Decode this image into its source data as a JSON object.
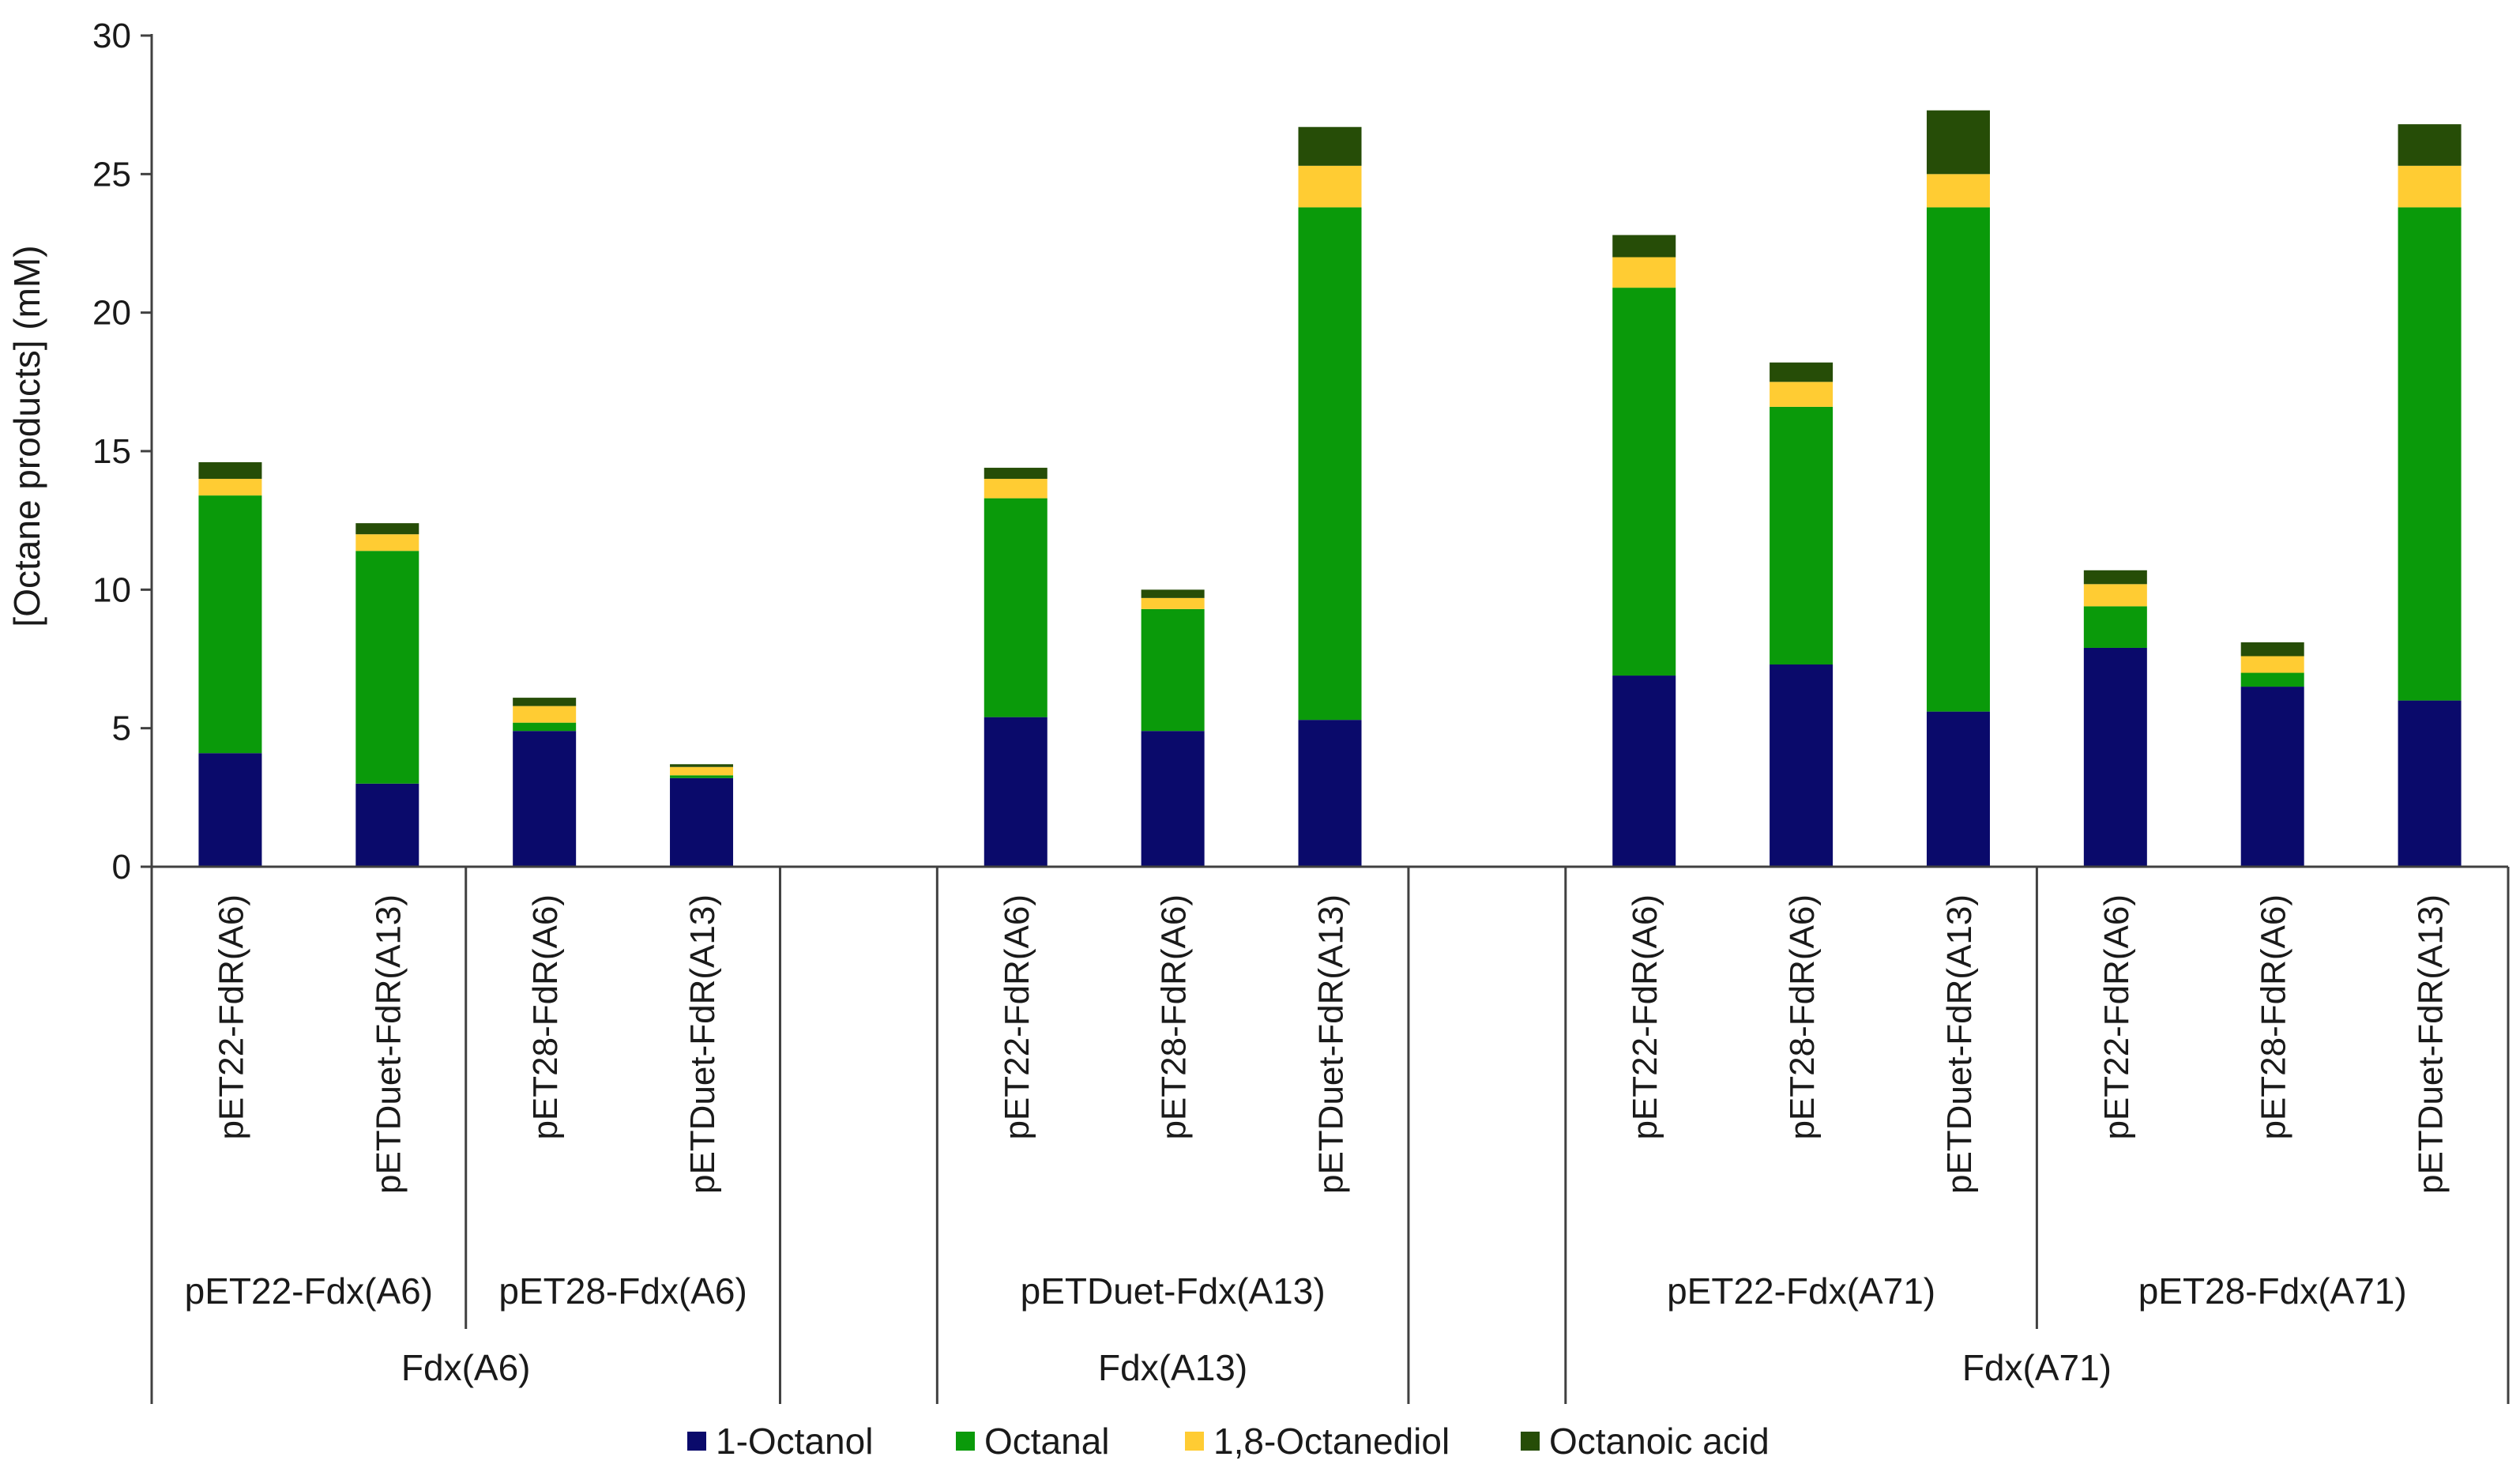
{
  "chart_data": {
    "type": "bar",
    "stacked": true,
    "ylabel": "[Octane products] (mM)",
    "ylim": [
      0,
      30
    ],
    "yticks": [
      0,
      5,
      10,
      15,
      20,
      25,
      30
    ],
    "grid": false,
    "legend_position": "bottom",
    "categories": [
      "pET22-FdR(A6)",
      "pETDuet-FdR(A13)",
      "pET28-FdR(A6)",
      "pETDuet-FdR(A13)",
      "",
      "pET22-FdR(A6)",
      "pET28-FdR(A6)",
      "pETDuet-FdR(A13)",
      "",
      "pET22-FdR(A6)",
      "pET28-FdR(A6)",
      "pETDuet-FdR(A13)",
      "pET22-FdR(A6)",
      "pET28-FdR(A6)",
      "pETDuet-FdR(A13)"
    ],
    "series": [
      {
        "name": "1-Octanol",
        "color": "#0a0a6b",
        "values": [
          4.1,
          3.0,
          4.9,
          3.2,
          null,
          5.4,
          4.9,
          5.3,
          null,
          6.9,
          7.3,
          5.6,
          7.9,
          6.5,
          6.0
        ]
      },
      {
        "name": "Octanal",
        "color": "#0a9a0a",
        "values": [
          9.3,
          8.4,
          0.3,
          0.1,
          null,
          7.9,
          4.4,
          18.5,
          null,
          14.0,
          9.3,
          18.2,
          1.5,
          0.5,
          17.8
        ]
      },
      {
        "name": "1,8-Octanediol",
        "color": "#ffcc33",
        "values": [
          0.6,
          0.6,
          0.6,
          0.3,
          null,
          0.7,
          0.4,
          1.5,
          null,
          1.1,
          0.9,
          1.2,
          0.8,
          0.6,
          1.5
        ]
      },
      {
        "name": "Octanoic acid",
        "color": "#264d07",
        "values": [
          0.6,
          0.4,
          0.3,
          0.1,
          null,
          0.4,
          0.3,
          1.4,
          null,
          0.8,
          0.7,
          2.3,
          0.5,
          0.5,
          1.5
        ]
      }
    ],
    "subgroups": [
      {
        "label": "pET22-Fdx(A6)",
        "slots": [
          0,
          1
        ]
      },
      {
        "label": "pET28-Fdx(A6)",
        "slots": [
          2,
          3
        ]
      },
      {
        "label": "pETDuet-Fdx(A13)",
        "slots": [
          5,
          7
        ]
      },
      {
        "label": "pET22-Fdx(A71)",
        "slots": [
          9,
          11
        ]
      },
      {
        "label": "pET28-Fdx(A71)",
        "slots": [
          12,
          14
        ]
      }
    ],
    "groups": [
      {
        "label": "Fdx(A6)",
        "slots": [
          0,
          3
        ]
      },
      {
        "label": "Fdx(A13)",
        "slots": [
          5,
          7
        ]
      },
      {
        "label": "Fdx(A71)",
        "slots": [
          9,
          14
        ]
      }
    ]
  }
}
